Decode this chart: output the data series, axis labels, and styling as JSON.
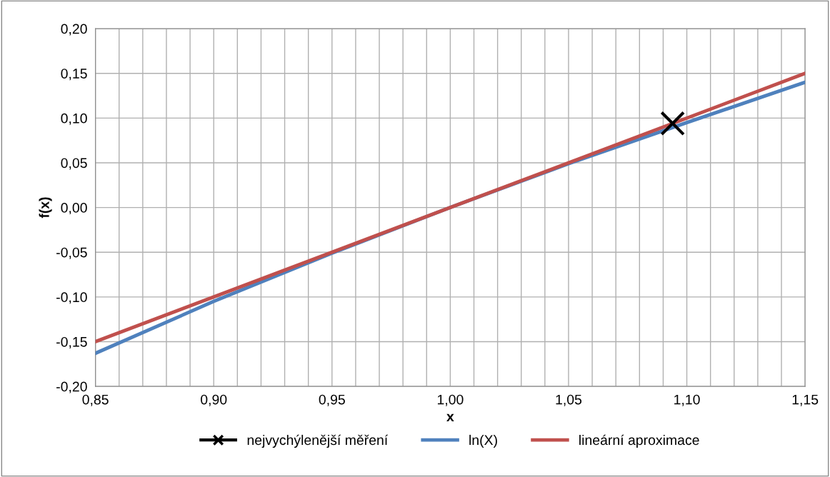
{
  "chart_data": {
    "type": "line",
    "xlabel": "x",
    "ylabel": "f(x)",
    "xlim": [
      0.85,
      1.15
    ],
    "ylim": [
      -0.2,
      0.2
    ],
    "xticks": [
      {
        "value": 0.85,
        "label": "0,85"
      },
      {
        "value": 0.86,
        "label": null
      },
      {
        "value": 0.87,
        "label": null
      },
      {
        "value": 0.88,
        "label": null
      },
      {
        "value": 0.89,
        "label": null
      },
      {
        "value": 0.9,
        "label": "0,90"
      },
      {
        "value": 0.91,
        "label": null
      },
      {
        "value": 0.92,
        "label": null
      },
      {
        "value": 0.93,
        "label": null
      },
      {
        "value": 0.94,
        "label": null
      },
      {
        "value": 0.95,
        "label": "0,95"
      },
      {
        "value": 0.96,
        "label": null
      },
      {
        "value": 0.97,
        "label": null
      },
      {
        "value": 0.98,
        "label": null
      },
      {
        "value": 0.99,
        "label": null
      },
      {
        "value": 1.0,
        "label": "1,00"
      },
      {
        "value": 1.01,
        "label": null
      },
      {
        "value": 1.02,
        "label": null
      },
      {
        "value": 1.03,
        "label": null
      },
      {
        "value": 1.04,
        "label": null
      },
      {
        "value": 1.05,
        "label": "1,05"
      },
      {
        "value": 1.06,
        "label": null
      },
      {
        "value": 1.07,
        "label": null
      },
      {
        "value": 1.08,
        "label": null
      },
      {
        "value": 1.09,
        "label": null
      },
      {
        "value": 1.1,
        "label": "1,10"
      },
      {
        "value": 1.11,
        "label": null
      },
      {
        "value": 1.12,
        "label": null
      },
      {
        "value": 1.13,
        "label": null
      },
      {
        "value": 1.14,
        "label": null
      },
      {
        "value": 1.15,
        "label": "1,15"
      }
    ],
    "yticks": [
      {
        "value": -0.2,
        "label": "-0,20"
      },
      {
        "value": -0.15,
        "label": "-0,15"
      },
      {
        "value": -0.1,
        "label": "-0,10"
      },
      {
        "value": -0.05,
        "label": "-0,05"
      },
      {
        "value": 0.0,
        "label": "0,00"
      },
      {
        "value": 0.05,
        "label": "0,05"
      },
      {
        "value": 0.1,
        "label": "0,10"
      },
      {
        "value": 0.15,
        "label": "0,15"
      },
      {
        "value": 0.2,
        "label": "0,20"
      }
    ],
    "grid": true,
    "legend": "bottom",
    "series": [
      {
        "name": "nejvychýlenější měření",
        "type": "scatter",
        "marker": "cross",
        "color": "#000000",
        "x": [
          1.094
        ],
        "values": [
          0.094
        ]
      },
      {
        "name": "ln(X)",
        "marker": "none",
        "color": "#4f81bd",
        "x": [
          0.85,
          0.9,
          0.95,
          1.0,
          1.05,
          1.1,
          1.15
        ],
        "values": [
          -0.163,
          -0.105,
          -0.051,
          0.0,
          0.049,
          0.095,
          0.14
        ]
      },
      {
        "name": "lineární aproximace",
        "marker": "none",
        "color": "#c0504d",
        "x": [
          0.85,
          1.15
        ],
        "values": [
          -0.15,
          0.15
        ]
      }
    ]
  }
}
